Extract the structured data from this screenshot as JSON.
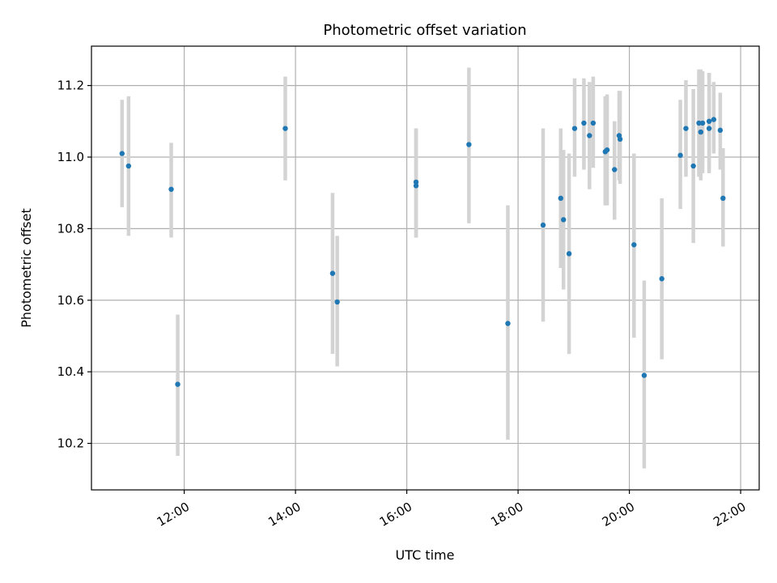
{
  "chart_data": {
    "type": "scatter",
    "title": "Photometric offset variation",
    "xlabel": "UTC time",
    "ylabel": "Photometric offset",
    "xlim": [
      "10:20",
      "22:20"
    ],
    "ylim": [
      10.07,
      11.31
    ],
    "grid": true,
    "x_ticks": [
      "12:00",
      "14:00",
      "16:00",
      "18:00",
      "20:00",
      "22:00"
    ],
    "y_ticks": [
      "10.2",
      "10.4",
      "10.6",
      "10.8",
      "11.0",
      "11.2"
    ],
    "colors": {
      "points": "#1f77b4",
      "errorbars": "#d3d3d3",
      "grid": "#b0b0b0"
    },
    "points": [
      {
        "time": "10:53",
        "y": 11.01,
        "low": 10.86,
        "high": 11.16
      },
      {
        "time": "11:00",
        "y": 10.975,
        "low": 10.78,
        "high": 11.17
      },
      {
        "time": "11:46",
        "y": 10.91,
        "low": 10.775,
        "high": 11.04
      },
      {
        "time": "11:53",
        "y": 10.365,
        "low": 10.165,
        "high": 10.56
      },
      {
        "time": "13:49",
        "y": 11.08,
        "low": 10.935,
        "high": 11.225
      },
      {
        "time": "14:40",
        "y": 10.675,
        "low": 10.45,
        "high": 10.9
      },
      {
        "time": "14:45",
        "y": 10.595,
        "low": 10.415,
        "high": 10.78
      },
      {
        "time": "16:10",
        "y": 10.93,
        "low": 10.775,
        "high": 11.08
      },
      {
        "time": "16:10",
        "y": 10.92,
        "low": 10.775,
        "high": 11.08
      },
      {
        "time": "17:07",
        "y": 11.035,
        "low": 10.815,
        "high": 11.25
      },
      {
        "time": "17:49",
        "y": 10.535,
        "low": 10.21,
        "high": 10.865
      },
      {
        "time": "18:27",
        "y": 10.81,
        "low": 10.54,
        "high": 11.08
      },
      {
        "time": "18:46",
        "y": 10.885,
        "low": 10.69,
        "high": 11.08
      },
      {
        "time": "18:49",
        "y": 10.825,
        "low": 10.63,
        "high": 11.02
      },
      {
        "time": "18:55",
        "y": 10.73,
        "low": 10.45,
        "high": 11.01
      },
      {
        "time": "19:01",
        "y": 11.08,
        "low": 10.945,
        "high": 11.22
      },
      {
        "time": "19:11",
        "y": 11.095,
        "low": 10.965,
        "high": 11.22
      },
      {
        "time": "19:17",
        "y": 11.06,
        "low": 10.91,
        "high": 11.21
      },
      {
        "time": "19:21",
        "y": 11.095,
        "low": 10.97,
        "high": 11.225
      },
      {
        "time": "19:34",
        "y": 11.015,
        "low": 10.865,
        "high": 11.17
      },
      {
        "time": "19:36",
        "y": 11.02,
        "low": 10.865,
        "high": 11.175
      },
      {
        "time": "19:44",
        "y": 10.965,
        "low": 10.825,
        "high": 11.1
      },
      {
        "time": "19:49",
        "y": 11.06,
        "low": 10.935,
        "high": 11.185
      },
      {
        "time": "19:50",
        "y": 11.05,
        "low": 10.925,
        "high": 11.185
      },
      {
        "time": "20:05",
        "y": 10.755,
        "low": 10.495,
        "high": 11.01
      },
      {
        "time": "20:16",
        "y": 10.39,
        "low": 10.13,
        "high": 10.655
      },
      {
        "time": "20:35",
        "y": 10.66,
        "low": 10.435,
        "high": 10.885
      },
      {
        "time": "20:55",
        "y": 11.005,
        "low": 10.855,
        "high": 11.16
      },
      {
        "time": "21:01",
        "y": 11.08,
        "low": 10.945,
        "high": 11.215
      },
      {
        "time": "21:09",
        "y": 10.975,
        "low": 10.76,
        "high": 11.19
      },
      {
        "time": "21:15",
        "y": 11.095,
        "low": 10.945,
        "high": 11.245
      },
      {
        "time": "21:17",
        "y": 11.07,
        "low": 10.935,
        "high": 11.245
      },
      {
        "time": "21:19",
        "y": 11.095,
        "low": 10.955,
        "high": 11.24
      },
      {
        "time": "21:26",
        "y": 11.08,
        "low": 10.955,
        "high": 11.235
      },
      {
        "time": "21:26",
        "y": 11.1,
        "low": 10.965,
        "high": 11.235
      },
      {
        "time": "21:31",
        "y": 11.105,
        "low": 11.01,
        "high": 11.21
      },
      {
        "time": "21:38",
        "y": 11.075,
        "low": 10.965,
        "high": 11.18
      },
      {
        "time": "21:41",
        "y": 10.885,
        "low": 10.75,
        "high": 11.025
      }
    ]
  }
}
